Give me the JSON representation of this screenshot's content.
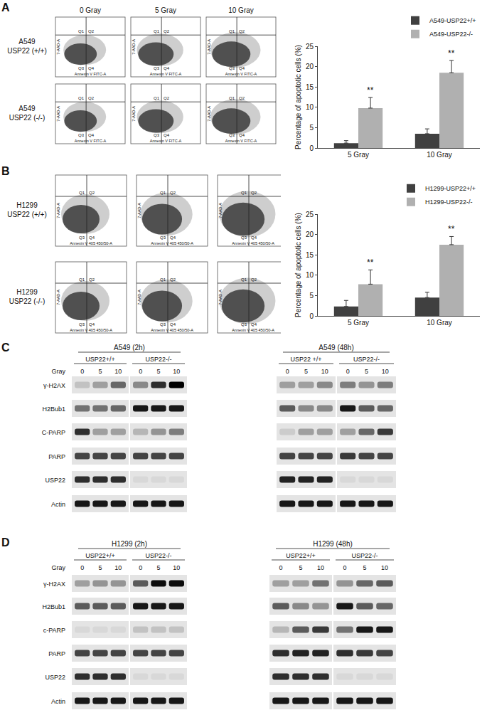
{
  "chart_data": [
    {
      "type": "bar",
      "categories": [
        "5 Gray",
        "10 Gray"
      ],
      "series": [
        {
          "name": "A549-USP22+/+",
          "color": "#404040",
          "values": [
            1.2,
            3.5
          ],
          "errors": [
            0.6,
            1.2
          ]
        },
        {
          "name": "A549-USP22-/-",
          "color": "#b0b0b0",
          "values": [
            9.8,
            18.5
          ],
          "errors": [
            2.6,
            3.0
          ]
        }
      ],
      "y_label": "Percentage of apoptotic cells (%)",
      "ylim": [
        0,
        25
      ],
      "yticks": [
        0,
        5,
        10,
        15,
        20,
        25
      ],
      "grid": false,
      "legend": "top right",
      "annotations": [
        {
          "category": "5 Gray",
          "series": "A549-USP22-/-",
          "text": "**"
        },
        {
          "category": "10 Gray",
          "series": "A549-USP22-/-",
          "text": "**"
        }
      ]
    },
    {
      "type": "bar",
      "categories": [
        "5 Gray",
        "10 Gray"
      ],
      "series": [
        {
          "name": "H1299-USP22+/+",
          "color": "#404040",
          "values": [
            2.3,
            4.5
          ],
          "errors": [
            1.5,
            1.3
          ]
        },
        {
          "name": "H1299-USP22-/-",
          "color": "#b0b0b0",
          "values": [
            7.8,
            17.5
          ],
          "errors": [
            3.5,
            2.0
          ]
        }
      ],
      "y_label": "Percentage of apoptotic cells (%)",
      "ylim": [
        0,
        25
      ],
      "yticks": [
        0,
        5,
        10,
        15,
        20,
        25
      ],
      "grid": false,
      "legend": "top right",
      "annotations": [
        {
          "category": "5 Gray",
          "series": "H1299-USP22-/-",
          "text": "**"
        },
        {
          "category": "10 Gray",
          "series": "H1299-USP22-/-",
          "text": "**"
        }
      ]
    }
  ],
  "figure": {
    "panels": [
      {
        "label": "A",
        "flow": {
          "doses": [
            "0 Gray",
            "5 Gray",
            "10 Gray"
          ],
          "rows": [
            [
              "A549",
              "USP22 (+/+)"
            ],
            [
              "A549",
              "USP22 (-/-)"
            ]
          ],
          "x_label": "Annexin V FITC-A",
          "y_label": "7-AAD-A",
          "quadrants": [
            "Q1",
            "Q2",
            "Q3",
            "Q4"
          ]
        }
      },
      {
        "label": "B",
        "flow": {
          "rows": [
            [
              "H1299",
              "USP22 (+/+)"
            ],
            [
              "H1299",
              "USP22 (-/-)"
            ]
          ],
          "x_label": "Annexin V 405 450/50-A",
          "y_label": "7-AAD-A",
          "quadrants": [
            "Q1",
            "Q2",
            "Q3",
            "Q4"
          ]
        }
      },
      {
        "label": "C",
        "western": {
          "row_labels": [
            "γ-H2AX",
            "H2Bub1",
            "C-PARP",
            "PARP",
            "USP22",
            "Actin"
          ],
          "dose_label": "Gray",
          "blots": [
            {
              "title": "A549 (2h)",
              "groups": [
                "USP22+/+",
                "USP22-/-"
              ],
              "doses": [
                0,
                5,
                10,
                0,
                5,
                10
              ],
              "bands": [
                [
                  0.15,
                  0.3,
                  0.55,
                  0.4,
                  0.8,
                  1.0
                ],
                [
                  0.5,
                  0.5,
                  0.55,
                  0.9,
                  0.9,
                  0.9
                ],
                [
                  0.8,
                  0.3,
                  0.3,
                  0.2,
                  0.35,
                  0.45
                ],
                [
                  0.7,
                  0.7,
                  0.7,
                  0.7,
                  0.7,
                  0.7
                ],
                [
                  0.8,
                  0.8,
                  0.8,
                  0.05,
                  0.05,
                  0.05
                ],
                [
                  0.9,
                  0.9,
                  0.9,
                  0.9,
                  0.9,
                  0.9
                ]
              ]
            },
            {
              "title": "A549 (48h)",
              "groups": [
                "USP22 +/+",
                "USP22-/-"
              ],
              "doses": [
                0,
                5,
                10,
                0,
                5,
                10
              ],
              "bands": [
                [
                  0.3,
                  0.3,
                  0.4,
                  0.45,
                  0.35,
                  0.45
                ],
                [
                  0.6,
                  0.4,
                  0.4,
                  0.9,
                  0.6,
                  0.55
                ],
                [
                  0.1,
                  0.3,
                  0.3,
                  0.3,
                  0.55,
                  0.75
                ],
                [
                  0.7,
                  0.7,
                  0.7,
                  0.75,
                  0.7,
                  0.7
                ],
                [
                  0.85,
                  0.85,
                  0.85,
                  0.05,
                  0.05,
                  0.05
                ],
                [
                  0.9,
                  0.9,
                  0.9,
                  0.9,
                  0.9,
                  0.9
                ]
              ]
            }
          ]
        }
      },
      {
        "label": "D",
        "western": {
          "row_labels": [
            "γ-H2AX",
            "H2Bub1",
            "c-PARP",
            "PARP",
            "USP22",
            "Actin"
          ],
          "dose_label": "Gray",
          "blots": [
            {
              "title": "H1299 (2h)",
              "groups": [
                "USP22+/+",
                "USP22-/-"
              ],
              "doses": [
                0,
                5,
                10,
                0,
                5,
                10
              ],
              "bands": [
                [
                  0.3,
                  0.35,
                  0.35,
                  0.6,
                  0.95,
                  0.95
                ],
                [
                  0.6,
                  0.6,
                  0.6,
                  0.9,
                  0.9,
                  0.9
                ],
                [
                  0.05,
                  0.05,
                  0.05,
                  0.15,
                  0.15,
                  0.15
                ],
                [
                  0.7,
                  0.7,
                  0.7,
                  0.7,
                  0.7,
                  0.7
                ],
                [
                  0.8,
                  0.8,
                  0.8,
                  0.05,
                  0.05,
                  0.05
                ],
                [
                  0.9,
                  0.9,
                  0.9,
                  0.9,
                  0.9,
                  0.9
                ]
              ]
            },
            {
              "title": "H1299 (48h)",
              "groups": [
                "USP22+/+",
                "USP22-/-"
              ],
              "doses": [
                0,
                5,
                10,
                0,
                5,
                10
              ],
              "bands": [
                [
                  0.3,
                  0.3,
                  0.5,
                  0.35,
                  0.55,
                  0.6
                ],
                [
                  0.6,
                  0.4,
                  0.35,
                  0.9,
                  0.6,
                  0.55
                ],
                [
                  0.2,
                  0.6,
                  0.75,
                  0.5,
                  0.9,
                  0.9
                ],
                [
                  0.8,
                  0.85,
                  0.85,
                  0.8,
                  0.75,
                  0.7
                ],
                [
                  0.8,
                  0.8,
                  0.8,
                  0.05,
                  0.05,
                  0.05
                ],
                [
                  0.9,
                  0.9,
                  0.9,
                  0.9,
                  0.9,
                  0.9
                ]
              ]
            }
          ]
        }
      }
    ]
  }
}
